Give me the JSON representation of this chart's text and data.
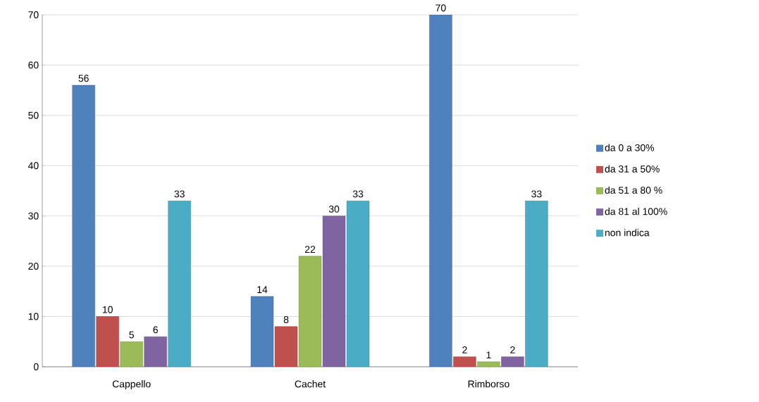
{
  "chart_data": {
    "type": "bar",
    "categories": [
      "Cappello",
      "Cachet",
      "Rimborso"
    ],
    "series": [
      {
        "name": "da 0 a 30%",
        "color": "#4f81bd",
        "values": [
          56,
          14,
          70
        ]
      },
      {
        "name": "da 31 a 50%",
        "color": "#c0504d",
        "values": [
          10,
          8,
          2
        ]
      },
      {
        "name": "da 51 a 80 %",
        "color": "#9bbb59",
        "values": [
          5,
          22,
          1
        ]
      },
      {
        "name": "da 81 al 100%",
        "color": "#8064a2",
        "values": [
          6,
          30,
          2
        ]
      },
      {
        "name": "non indica",
        "color": "#4bacc6",
        "values": [
          33,
          33,
          33
        ]
      }
    ],
    "ylim": [
      0,
      70
    ],
    "yticks": [
      0,
      10,
      20,
      30,
      40,
      50,
      60,
      70
    ],
    "grid": "y",
    "legend": "right",
    "data_labels": true
  }
}
